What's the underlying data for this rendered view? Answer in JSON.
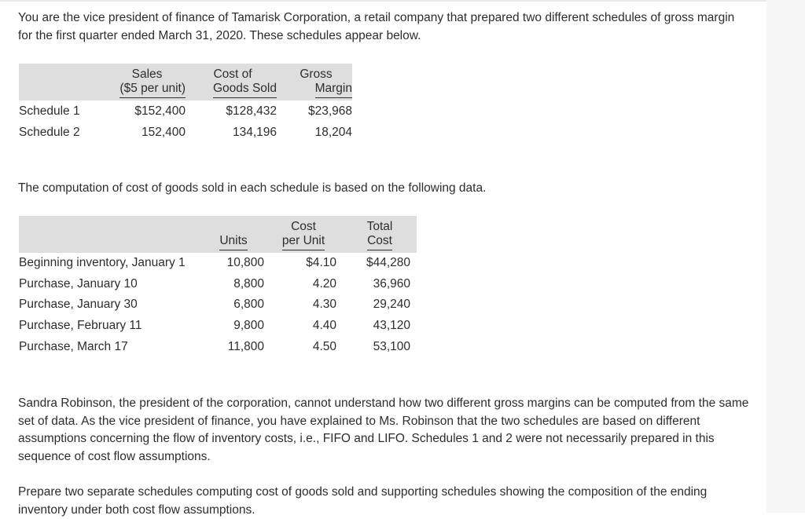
{
  "intro": "You are the vice president of finance of Tamarisk Corporation, a retail company that prepared two different schedules of gross margin for the first quarter ended March 31, 2020. These schedules appear below.",
  "schedule_table": {
    "headers": {
      "sales_line1": "Sales",
      "sales_line2": "($5 per unit)",
      "cogs_line1": "Cost of",
      "cogs_line2": "Goods Sold",
      "gm_line1": "Gross",
      "gm_line2": "Margin"
    },
    "rows": [
      {
        "label": "Schedule 1",
        "sales": "$152,400",
        "cogs": "$128,432",
        "gm": "$23,968"
      },
      {
        "label": "Schedule 2",
        "sales": "152,400",
        "cogs": "134,196",
        "gm": "18,204"
      }
    ]
  },
  "computation_text": "The computation of cost of goods sold in each schedule is based on the following data.",
  "inventory_table": {
    "headers": {
      "units": "Units",
      "cost_line1": "Cost",
      "cost_line2": "per Unit",
      "total_line1": "Total",
      "total_line2": "Cost"
    },
    "rows": [
      {
        "label": "Beginning inventory, January 1",
        "units": "10,800",
        "cost": "$4.10",
        "total": "$44,280"
      },
      {
        "label": "Purchase, January 10",
        "units": "8,800",
        "cost": "4.20",
        "total": "36,960"
      },
      {
        "label": "Purchase, January 30",
        "units": "6,800",
        "cost": "4.30",
        "total": "29,240"
      },
      {
        "label": "Purchase, February 11",
        "units": "9,800",
        "cost": "4.40",
        "total": "43,120"
      },
      {
        "label": "Purchase, March 17",
        "units": "11,800",
        "cost": "4.50",
        "total": "53,100"
      }
    ]
  },
  "story": "Sandra Robinson, the president of the corporation, cannot understand how two different gross margins can be computed from the same set of data. As the vice president of finance, you have explained to Ms. Robinson that the two schedules are based on different assumptions concerning the flow of inventory costs, i.e., FIFO and LIFO. Schedules 1 and 2 were not necessarily prepared in this sequence of cost flow assumptions.",
  "prepare": "Prepare two separate schedules computing cost of goods sold and supporting schedules showing the composition of the ending inventory under both cost flow assumptions."
}
